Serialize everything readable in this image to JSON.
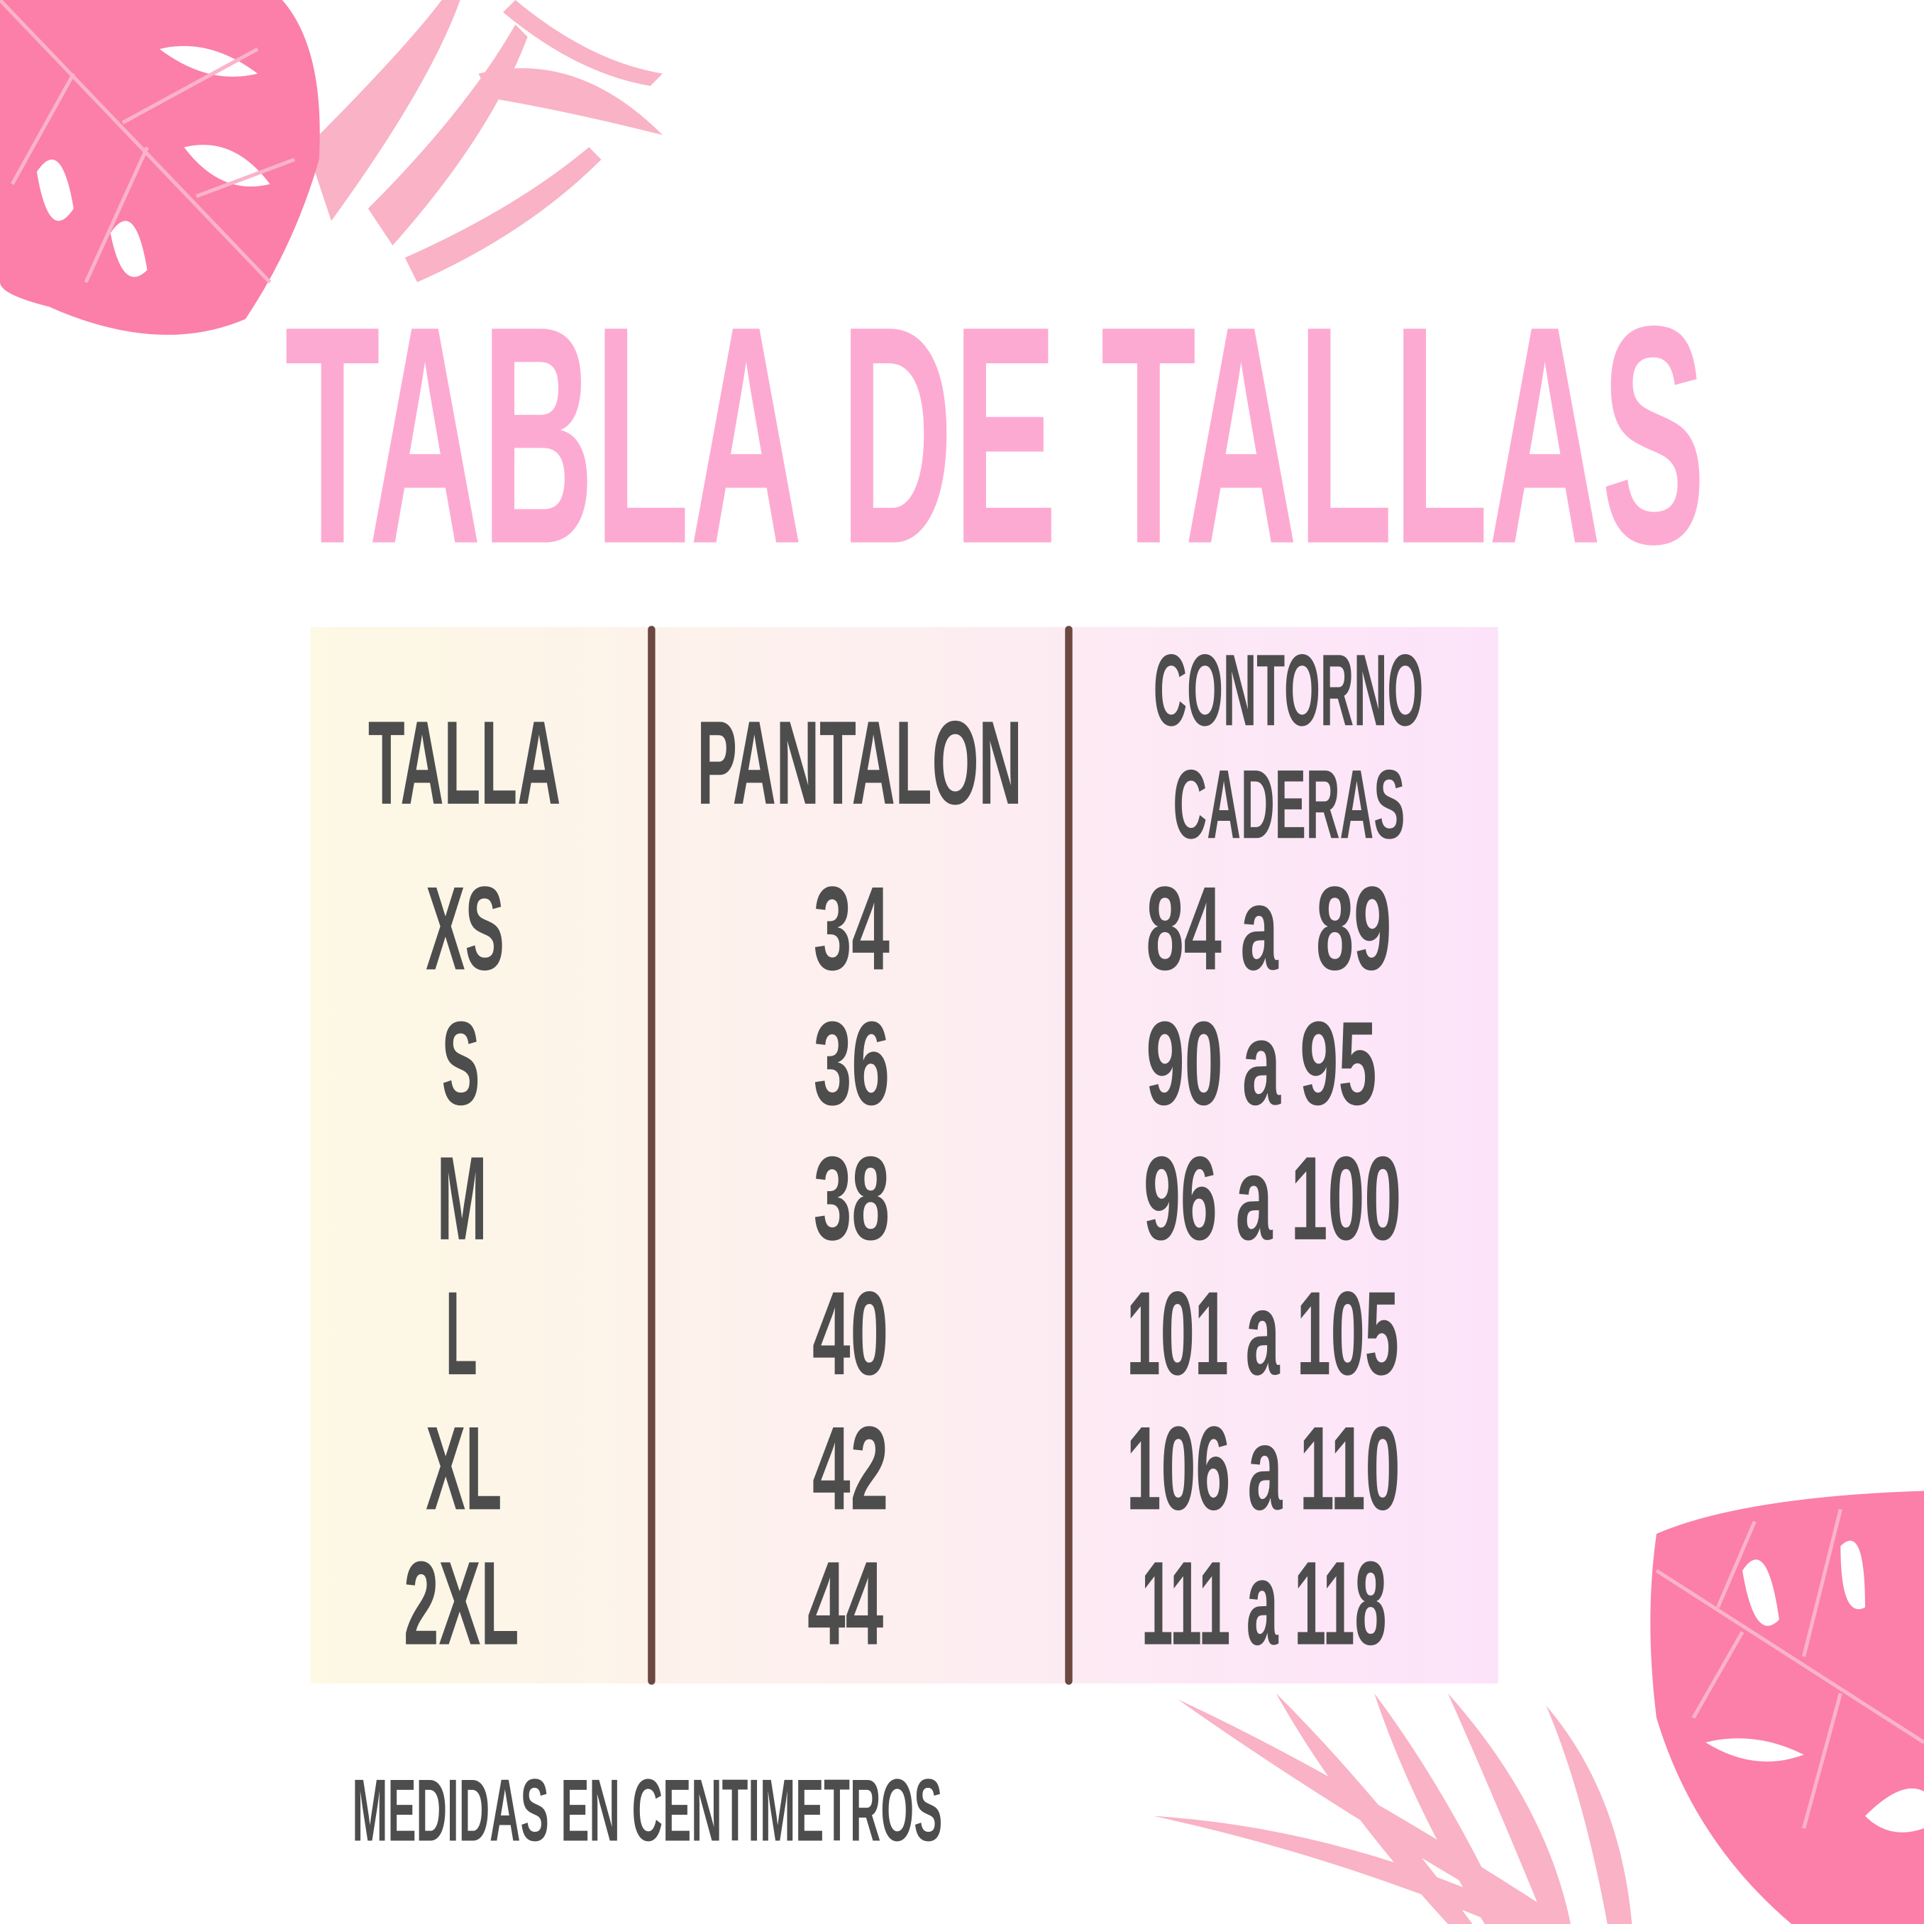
{
  "title": "TABLA DE TALLAS",
  "table": {
    "headers": {
      "talla": "TALLA",
      "pantalon": "PANTALON",
      "contorno_line1": "CONTORNO",
      "contorno_line2": "CADERAS"
    },
    "rows": [
      {
        "talla": "XS",
        "pantalon": "34",
        "contorno": "84 a  89"
      },
      {
        "talla": "S",
        "pantalon": "36",
        "contorno": "90 a 95"
      },
      {
        "talla": "M",
        "pantalon": "38",
        "contorno": "96 a 100"
      },
      {
        "talla": "L",
        "pantalon": "40",
        "contorno": "101 a 105"
      },
      {
        "talla": "XL",
        "pantalon": "42",
        "contorno": "106 a 110"
      },
      {
        "talla": "2XL",
        "pantalon": "44",
        "contorno": "111 a 118"
      }
    ]
  },
  "footer": "MEDIDAS EN CENTIMETROS",
  "colors": {
    "title": "#fdaad2",
    "text": "#4d4d4d",
    "divider": "#6b4840",
    "leaf_dark": "#fb7fa8",
    "leaf_light": "#f9b4c8"
  }
}
